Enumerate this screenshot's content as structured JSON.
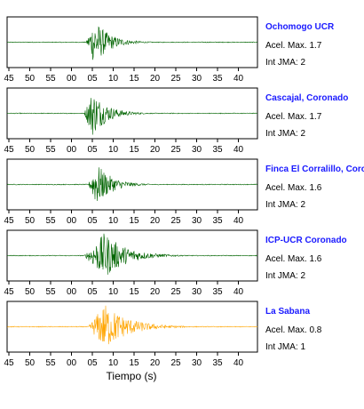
{
  "chart_data": {
    "type": "line",
    "xlabel": "Tiempo (s)",
    "tick_labels": [
      "45",
      "50",
      "55",
      "00",
      "05",
      "10",
      "15",
      "20",
      "25",
      "30",
      "35",
      "40"
    ],
    "info_labels": {
      "pga_prefix": "Acel. Max.",
      "jma_prefix": "Int JMA:"
    },
    "stations": [
      {
        "name": "Ochomogo UCR",
        "pga": "1.7",
        "jma": "2",
        "color": "#006400",
        "onset_s": 3.5,
        "peak_s": 5.5,
        "amplitude": 0.95,
        "decay": 3.5
      },
      {
        "name": "Cascajal, Coronado",
        "pga": "1.7",
        "jma": "2",
        "color": "#006400",
        "onset_s": 3.0,
        "peak_s": 5.0,
        "amplitude": 0.95,
        "decay": 3.5
      },
      {
        "name": "Finca El Corralillo, Coronado",
        "pga": "1.6",
        "jma": "2",
        "color": "#006400",
        "onset_s": 4.0,
        "peak_s": 6.0,
        "amplitude": 0.9,
        "decay": 3.5
      },
      {
        "name": "ICP-UCR Coronado",
        "pga": "1.6",
        "jma": "2",
        "color": "#006400",
        "onset_s": 3.0,
        "peak_s": 8.0,
        "amplitude": 0.95,
        "decay": 5.0
      },
      {
        "name": "La Sabana",
        "pga": "0.8",
        "jma": "1",
        "color": "#ffa500",
        "onset_s": 4.0,
        "peak_s": 8.0,
        "amplitude": 0.95,
        "decay": 5.5
      }
    ]
  }
}
